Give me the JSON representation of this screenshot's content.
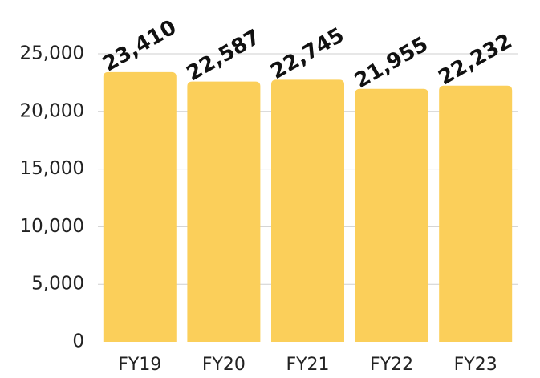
{
  "chart_data": {
    "type": "bar",
    "categories": [
      "FY19",
      "FY20",
      "FY21",
      "FY22",
      "FY23"
    ],
    "values": [
      23410,
      22587,
      22745,
      21955,
      22232
    ],
    "value_labels": [
      "23,410",
      "22,587",
      "22,745",
      "21,955",
      "22,232"
    ],
    "color": "#fbcf5a",
    "ylim": [
      0,
      25000
    ],
    "yticks": [
      0,
      {
        "value": 5000,
        "label": "5,000"
      },
      {
        "value": 10000,
        "label": "10,000"
      },
      {
        "value": 15000,
        "label": "15,000"
      },
      {
        "value": 20000,
        "label": "20,000"
      },
      {
        "value": 25000,
        "label": "25,000"
      }
    ],
    "grid": true
  }
}
